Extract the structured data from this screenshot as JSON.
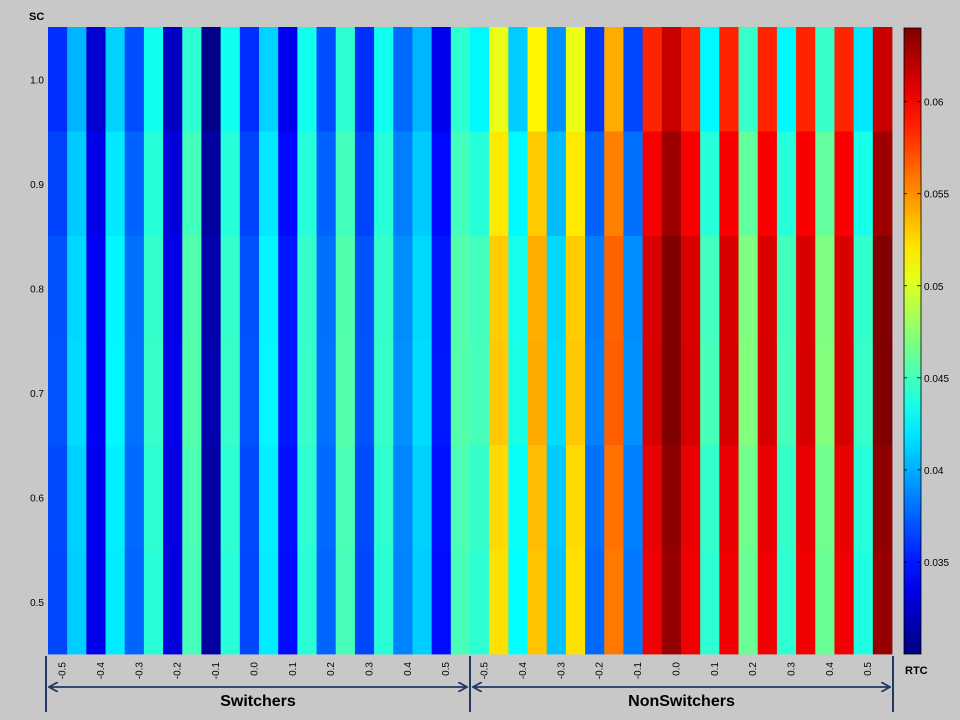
{
  "chart_data": {
    "type": "heatmap",
    "colorscale": "jet",
    "ylabel": "SC",
    "colorbar_label": "RTC",
    "y_values": [
      1.0,
      0.9,
      0.8,
      0.7,
      0.6,
      0.5
    ],
    "y_tick_labels": [
      "1.0",
      "0.9",
      "0.8",
      "0.7",
      "0.6",
      "0.5"
    ],
    "x_tick_labels": [
      "-0.5",
      "-0.4",
      "-0.3",
      "-0.2",
      "-0.1",
      "0.0",
      "0.1",
      "0.2",
      "0.3",
      "0.4",
      "0.5"
    ],
    "groups": [
      {
        "label": "Switchers",
        "columns": 22
      },
      {
        "label": "NonSwitchers",
        "columns": 22
      }
    ],
    "colorbar": {
      "range": [
        0.03,
        0.064
      ],
      "ticks": [
        0.035,
        0.04,
        0.045,
        0.05,
        0.055,
        0.06
      ],
      "tick_labels": [
        "0.035",
        "0.04",
        "0.045",
        "0.05",
        "0.055",
        "0.06"
      ]
    },
    "base_values": [
      0.0365,
      0.041,
      0.0335,
      0.042,
      0.0375,
      0.044,
      0.033,
      0.045,
      0.031,
      0.044,
      0.0365,
      0.042,
      0.0345,
      0.044,
      0.0375,
      0.045,
      0.0365,
      0.044,
      0.0385,
      0.041,
      0.0345,
      0.045,
      0.044,
      0.052,
      0.0425,
      0.053,
      0.0405,
      0.052,
      0.0375,
      0.0555,
      0.038,
      0.06,
      0.063,
      0.06,
      0.044,
      0.06,
      0.046,
      0.06,
      0.044,
      0.06,
      0.046,
      0.06,
      0.0435,
      0.063
    ]
  }
}
